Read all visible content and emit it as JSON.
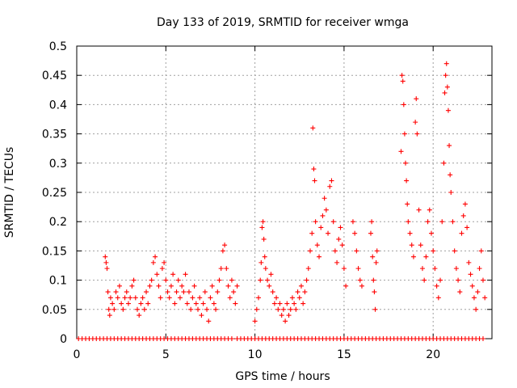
{
  "chart_data": {
    "type": "scatter",
    "title": "Day 133 of 2019, SRMTID for receiver wmga",
    "xlabel": "GPS time / hours",
    "ylabel": "SRMTID / TECUs",
    "xlim": [
      0,
      23.3
    ],
    "ylim": [
      0,
      0.5
    ],
    "grid": true,
    "marker": "+",
    "color": "#ff0000",
    "x_ticks": [
      0,
      5,
      10,
      15,
      20
    ],
    "x_tick_labels": [
      "0",
      "5",
      "10",
      "15",
      "20"
    ],
    "y_ticks": [
      0,
      0.05,
      0.1,
      0.15,
      0.2,
      0.25,
      0.3,
      0.35,
      0.4,
      0.45,
      0.5
    ],
    "y_tick_labels": [
      "0",
      "0.05",
      "0.1",
      "0.15",
      "0.2",
      "0.25",
      "0.3",
      "0.35",
      "0.4",
      "0.45",
      "0.5"
    ],
    "series": [
      {
        "name": "SRMTID",
        "points": [
          [
            1.6,
            0.14
          ],
          [
            1.65,
            0.13
          ],
          [
            1.7,
            0.12
          ],
          [
            1.75,
            0.08
          ],
          [
            1.8,
            0.05
          ],
          [
            1.85,
            0.04
          ],
          [
            1.9,
            0.07
          ],
          [
            2.0,
            0.06
          ],
          [
            2.1,
            0.05
          ],
          [
            2.2,
            0.08
          ],
          [
            2.3,
            0.07
          ],
          [
            2.4,
            0.09
          ],
          [
            2.5,
            0.06
          ],
          [
            2.6,
            0.05
          ],
          [
            2.7,
            0.07
          ],
          [
            2.8,
            0.08
          ],
          [
            2.9,
            0.06
          ],
          [
            3.0,
            0.07
          ],
          [
            3.1,
            0.09
          ],
          [
            3.2,
            0.1
          ],
          [
            3.3,
            0.07
          ],
          [
            3.4,
            0.05
          ],
          [
            3.5,
            0.04
          ],
          [
            3.6,
            0.06
          ],
          [
            3.7,
            0.07
          ],
          [
            3.8,
            0.05
          ],
          [
            3.9,
            0.08
          ],
          [
            4.0,
            0.06
          ],
          [
            4.1,
            0.09
          ],
          [
            4.2,
            0.1
          ],
          [
            4.3,
            0.13
          ],
          [
            4.4,
            0.14
          ],
          [
            4.5,
            0.11
          ],
          [
            4.6,
            0.09
          ],
          [
            4.7,
            0.07
          ],
          [
            4.8,
            0.12
          ],
          [
            4.9,
            0.13
          ],
          [
            5.0,
            0.1
          ],
          [
            5.1,
            0.08
          ],
          [
            5.2,
            0.07
          ],
          [
            5.3,
            0.09
          ],
          [
            5.4,
            0.11
          ],
          [
            5.5,
            0.06
          ],
          [
            5.6,
            0.08
          ],
          [
            5.7,
            0.1
          ],
          [
            5.8,
            0.07
          ],
          [
            5.9,
            0.09
          ],
          [
            6.0,
            0.08
          ],
          [
            6.1,
            0.11
          ],
          [
            6.2,
            0.06
          ],
          [
            6.3,
            0.08
          ],
          [
            6.4,
            0.05
          ],
          [
            6.5,
            0.07
          ],
          [
            6.6,
            0.09
          ],
          [
            6.7,
            0.06
          ],
          [
            6.8,
            0.05
          ],
          [
            6.9,
            0.07
          ],
          [
            7.0,
            0.04
          ],
          [
            7.1,
            0.06
          ],
          [
            7.2,
            0.08
          ],
          [
            7.3,
            0.05
          ],
          [
            7.4,
            0.03
          ],
          [
            7.5,
            0.07
          ],
          [
            7.6,
            0.09
          ],
          [
            7.7,
            0.06
          ],
          [
            7.8,
            0.05
          ],
          [
            7.9,
            0.08
          ],
          [
            8.0,
            0.1
          ],
          [
            8.1,
            0.12
          ],
          [
            8.2,
            0.15
          ],
          [
            8.3,
            0.16
          ],
          [
            8.4,
            0.12
          ],
          [
            8.5,
            0.09
          ],
          [
            8.6,
            0.07
          ],
          [
            8.7,
            0.1
          ],
          [
            8.8,
            0.08
          ],
          [
            8.9,
            0.06
          ],
          [
            9.0,
            0.09
          ],
          [
            10.0,
            0.03
          ],
          [
            10.1,
            0.05
          ],
          [
            10.2,
            0.07
          ],
          [
            10.3,
            0.1
          ],
          [
            10.35,
            0.13
          ],
          [
            10.4,
            0.19
          ],
          [
            10.45,
            0.2
          ],
          [
            10.5,
            0.17
          ],
          [
            10.55,
            0.14
          ],
          [
            10.6,
            0.12
          ],
          [
            10.7,
            0.1
          ],
          [
            10.8,
            0.09
          ],
          [
            10.9,
            0.11
          ],
          [
            11.0,
            0.08
          ],
          [
            11.1,
            0.06
          ],
          [
            11.2,
            0.07
          ],
          [
            11.3,
            0.05
          ],
          [
            11.4,
            0.06
          ],
          [
            11.5,
            0.04
          ],
          [
            11.6,
            0.05
          ],
          [
            11.7,
            0.03
          ],
          [
            11.8,
            0.06
          ],
          [
            11.9,
            0.04
          ],
          [
            12.0,
            0.05
          ],
          [
            12.1,
            0.07
          ],
          [
            12.2,
            0.06
          ],
          [
            12.3,
            0.05
          ],
          [
            12.4,
            0.08
          ],
          [
            12.5,
            0.07
          ],
          [
            12.6,
            0.09
          ],
          [
            12.7,
            0.06
          ],
          [
            12.8,
            0.08
          ],
          [
            12.9,
            0.1
          ],
          [
            13.0,
            0.12
          ],
          [
            13.1,
            0.15
          ],
          [
            13.2,
            0.18
          ],
          [
            13.25,
            0.36
          ],
          [
            13.3,
            0.29
          ],
          [
            13.35,
            0.27
          ],
          [
            13.4,
            0.2
          ],
          [
            13.5,
            0.16
          ],
          [
            13.6,
            0.14
          ],
          [
            13.7,
            0.19
          ],
          [
            13.8,
            0.21
          ],
          [
            13.9,
            0.24
          ],
          [
            14.0,
            0.22
          ],
          [
            14.1,
            0.18
          ],
          [
            14.2,
            0.26
          ],
          [
            14.3,
            0.27
          ],
          [
            14.4,
            0.2
          ],
          [
            14.5,
            0.15
          ],
          [
            14.6,
            0.13
          ],
          [
            14.7,
            0.17
          ],
          [
            14.8,
            0.19
          ],
          [
            14.9,
            0.16
          ],
          [
            15.0,
            0.12
          ],
          [
            15.1,
            0.09
          ],
          [
            15.5,
            0.2
          ],
          [
            15.6,
            0.18
          ],
          [
            15.7,
            0.15
          ],
          [
            15.8,
            0.12
          ],
          [
            15.9,
            0.1
          ],
          [
            16.0,
            0.09
          ],
          [
            16.5,
            0.18
          ],
          [
            16.55,
            0.2
          ],
          [
            16.6,
            0.14
          ],
          [
            16.65,
            0.1
          ],
          [
            16.7,
            0.08
          ],
          [
            16.75,
            0.05
          ],
          [
            16.8,
            0.13
          ],
          [
            16.85,
            0.15
          ],
          [
            18.2,
            0.32
          ],
          [
            18.25,
            0.45
          ],
          [
            18.3,
            0.44
          ],
          [
            18.35,
            0.4
          ],
          [
            18.4,
            0.35
          ],
          [
            18.45,
            0.3
          ],
          [
            18.5,
            0.27
          ],
          [
            18.55,
            0.23
          ],
          [
            18.6,
            0.2
          ],
          [
            18.7,
            0.18
          ],
          [
            18.8,
            0.16
          ],
          [
            18.9,
            0.14
          ],
          [
            19.0,
            0.37
          ],
          [
            19.05,
            0.41
          ],
          [
            19.1,
            0.35
          ],
          [
            19.2,
            0.22
          ],
          [
            19.3,
            0.16
          ],
          [
            19.4,
            0.12
          ],
          [
            19.5,
            0.1
          ],
          [
            19.6,
            0.14
          ],
          [
            19.7,
            0.2
          ],
          [
            19.8,
            0.22
          ],
          [
            19.9,
            0.18
          ],
          [
            20.0,
            0.15
          ],
          [
            20.1,
            0.12
          ],
          [
            20.2,
            0.09
          ],
          [
            20.3,
            0.07
          ],
          [
            20.4,
            0.1
          ],
          [
            20.5,
            0.2
          ],
          [
            20.6,
            0.3
          ],
          [
            20.65,
            0.42
          ],
          [
            20.7,
            0.45
          ],
          [
            20.75,
            0.47
          ],
          [
            20.8,
            0.43
          ],
          [
            20.85,
            0.39
          ],
          [
            20.9,
            0.33
          ],
          [
            20.95,
            0.28
          ],
          [
            21.0,
            0.25
          ],
          [
            21.1,
            0.2
          ],
          [
            21.2,
            0.15
          ],
          [
            21.3,
            0.12
          ],
          [
            21.4,
            0.1
          ],
          [
            21.5,
            0.08
          ],
          [
            21.6,
            0.18
          ],
          [
            21.7,
            0.21
          ],
          [
            21.8,
            0.23
          ],
          [
            21.9,
            0.19
          ],
          [
            22.0,
            0.13
          ],
          [
            22.1,
            0.11
          ],
          [
            22.2,
            0.09
          ],
          [
            22.3,
            0.07
          ],
          [
            22.4,
            0.05
          ],
          [
            22.5,
            0.08
          ],
          [
            22.6,
            0.12
          ],
          [
            22.7,
            0.15
          ],
          [
            22.8,
            0.1
          ],
          [
            22.9,
            0.07
          ]
        ],
        "zero_points_x": [
          0.1,
          0.3,
          0.5,
          0.7,
          0.9,
          1.1,
          1.3,
          1.5,
          1.7,
          1.9,
          2.1,
          2.3,
          2.5,
          2.7,
          2.9,
          3.1,
          3.3,
          3.5,
          3.7,
          3.9,
          4.1,
          4.3,
          4.5,
          4.7,
          4.9,
          5.1,
          5.3,
          5.5,
          5.7,
          5.9,
          6.1,
          6.3,
          6.5,
          6.7,
          6.9,
          7.1,
          7.3,
          7.5,
          7.7,
          7.9,
          8.1,
          8.3,
          8.5,
          8.7,
          9.0,
          9.2,
          9.4,
          9.6,
          9.8,
          10.0,
          10.2,
          10.4,
          10.6,
          10.8,
          11.0,
          11.2,
          11.4,
          11.6,
          11.8,
          12.0,
          12.2,
          12.4,
          12.6,
          12.8,
          13.0,
          13.2,
          13.4,
          13.6,
          13.8,
          14.0,
          14.2,
          14.4,
          14.6,
          14.8,
          15.0,
          15.2,
          15.4,
          15.6,
          15.8,
          16.0,
          16.2,
          16.4,
          16.6,
          16.8,
          17.0,
          17.2,
          17.4,
          17.6,
          17.8,
          18.0,
          18.2,
          18.4,
          18.6,
          18.8,
          19.0,
          19.2,
          19.4,
          19.6,
          19.8,
          20.0,
          20.2,
          20.4,
          20.6,
          20.8,
          21.0,
          21.2,
          21.4,
          21.6,
          21.8,
          22.0,
          22.2,
          22.4,
          22.6,
          22.8
        ]
      }
    ]
  }
}
